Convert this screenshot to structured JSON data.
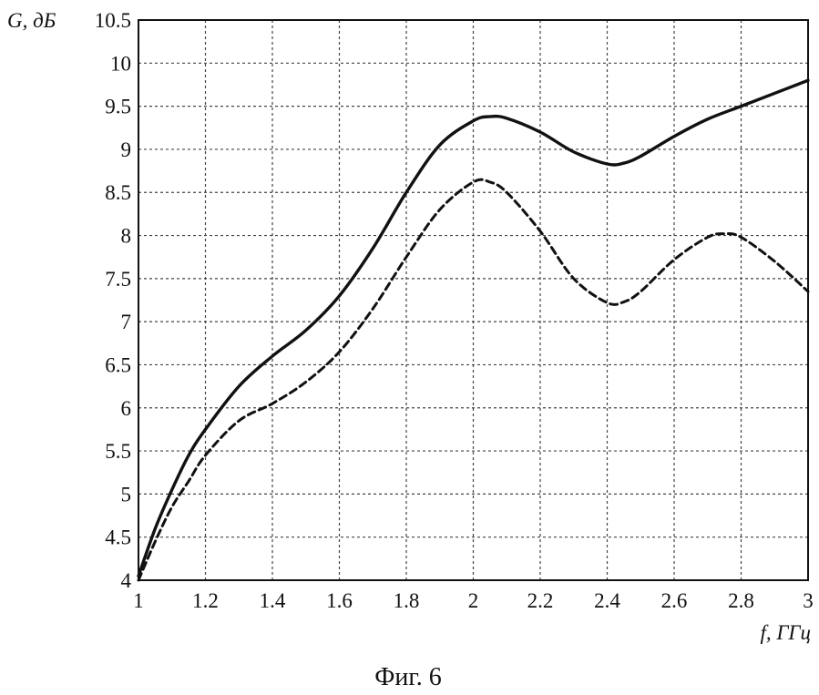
{
  "chart_data": {
    "type": "line",
    "ylabel": "G, дБ",
    "xlabel": "f, ГГц",
    "caption": "Фиг. 6",
    "xlim": [
      1,
      3
    ],
    "ylim": [
      4,
      10.5
    ],
    "x_ticks": [
      "1",
      "1.2",
      "1.4",
      "1.6",
      "1.8",
      "2",
      "2.2",
      "2.4",
      "2.6",
      "2.8",
      "3"
    ],
    "y_ticks": [
      "4",
      "4.5",
      "5",
      "5.5",
      "6",
      "6.5",
      "7",
      "7.5",
      "8",
      "8.5",
      "9",
      "9.5",
      "10",
      "10.5"
    ],
    "grid": true,
    "series": [
      {
        "style": "solid",
        "x": [
          1.0,
          1.05,
          1.1,
          1.15,
          1.2,
          1.3,
          1.4,
          1.5,
          1.6,
          1.7,
          1.8,
          1.9,
          2.0,
          2.05,
          2.1,
          2.2,
          2.3,
          2.4,
          2.45,
          2.5,
          2.6,
          2.7,
          2.8,
          2.9,
          3.0
        ],
        "y": [
          4.05,
          4.6,
          5.05,
          5.45,
          5.75,
          6.25,
          6.6,
          6.9,
          7.3,
          7.85,
          8.5,
          9.05,
          9.33,
          9.38,
          9.36,
          9.2,
          8.97,
          8.83,
          8.84,
          8.92,
          9.15,
          9.35,
          9.5,
          9.65,
          9.8
        ]
      },
      {
        "style": "dashed",
        "x": [
          1.0,
          1.05,
          1.1,
          1.15,
          1.2,
          1.3,
          1.4,
          1.5,
          1.6,
          1.7,
          1.8,
          1.9,
          2.0,
          2.05,
          2.1,
          2.2,
          2.3,
          2.4,
          2.45,
          2.5,
          2.6,
          2.7,
          2.75,
          2.8,
          2.9,
          3.0
        ],
        "y": [
          4.0,
          4.45,
          4.85,
          5.15,
          5.45,
          5.85,
          6.05,
          6.3,
          6.65,
          7.15,
          7.75,
          8.3,
          8.62,
          8.62,
          8.5,
          8.05,
          7.5,
          7.22,
          7.23,
          7.35,
          7.72,
          7.98,
          8.02,
          7.98,
          7.7,
          7.35
        ]
      }
    ]
  }
}
